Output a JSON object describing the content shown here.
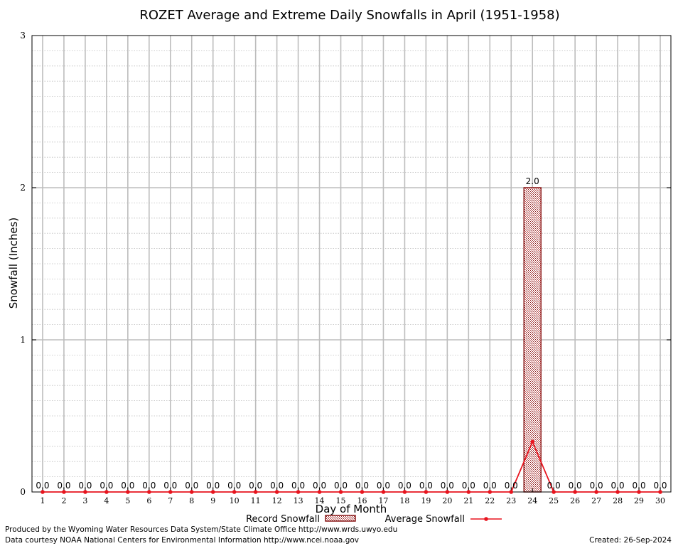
{
  "chart_data": {
    "type": "bar",
    "title": "ROZET Average and Extreme Daily Snowfalls in April (1951-1958)",
    "xlabel": "Day of Month",
    "ylabel": "Snowfall (Inches)",
    "ylim": [
      0,
      3
    ],
    "yticks": [
      "0",
      "1",
      "2",
      "3"
    ],
    "grid": true,
    "legend_placement": "bottom",
    "categories": [
      "1",
      "2",
      "3",
      "4",
      "5",
      "6",
      "7",
      "8",
      "9",
      "10",
      "11",
      "12",
      "13",
      "14",
      "15",
      "16",
      "17",
      "18",
      "19",
      "20",
      "21",
      "22",
      "23",
      "24",
      "25",
      "26",
      "27",
      "28",
      "29",
      "30"
    ],
    "series": [
      {
        "name": "Record Snowfall",
        "kind": "bar",
        "color": "#b22222",
        "values": [
          0,
          0,
          0,
          0,
          0,
          0,
          0,
          0,
          0,
          0,
          0,
          0,
          0,
          0,
          0,
          0,
          0,
          0,
          0,
          0,
          0,
          0,
          0,
          2.0,
          0,
          0,
          0,
          0,
          0,
          0
        ],
        "labels": [
          "0.0",
          "0.0",
          "0.0",
          "0.0",
          "0.0",
          "0.0",
          "0.0",
          "0.0",
          "0.0",
          "0.0",
          "0.0",
          "0.0",
          "0.0",
          "0.0",
          "0.0",
          "0.0",
          "0.0",
          "0.0",
          "0.0",
          "0.0",
          "0.0",
          "0.0",
          "0.0",
          "2.0",
          "0.0",
          "0.0",
          "0.0",
          "0.0",
          "0.0",
          "0.0"
        ]
      },
      {
        "name": "Average Snowfall",
        "kind": "line",
        "color": "#e8141e",
        "values": [
          0,
          0,
          0,
          0,
          0,
          0,
          0,
          0,
          0,
          0,
          0,
          0,
          0,
          0,
          0,
          0,
          0,
          0,
          0,
          0,
          0,
          0,
          0,
          0.33,
          0,
          0,
          0,
          0,
          0,
          0
        ]
      }
    ]
  },
  "footer": {
    "line1": "Produced by the Wyoming Water Resources Data System/State Climate Office http://www.wrds.uwyo.edu",
    "line2": "Data courtesy NOAA National Centers for Environmental Information http://www.ncei.noaa.gov",
    "created": "Created:  26-Sep-2024"
  }
}
